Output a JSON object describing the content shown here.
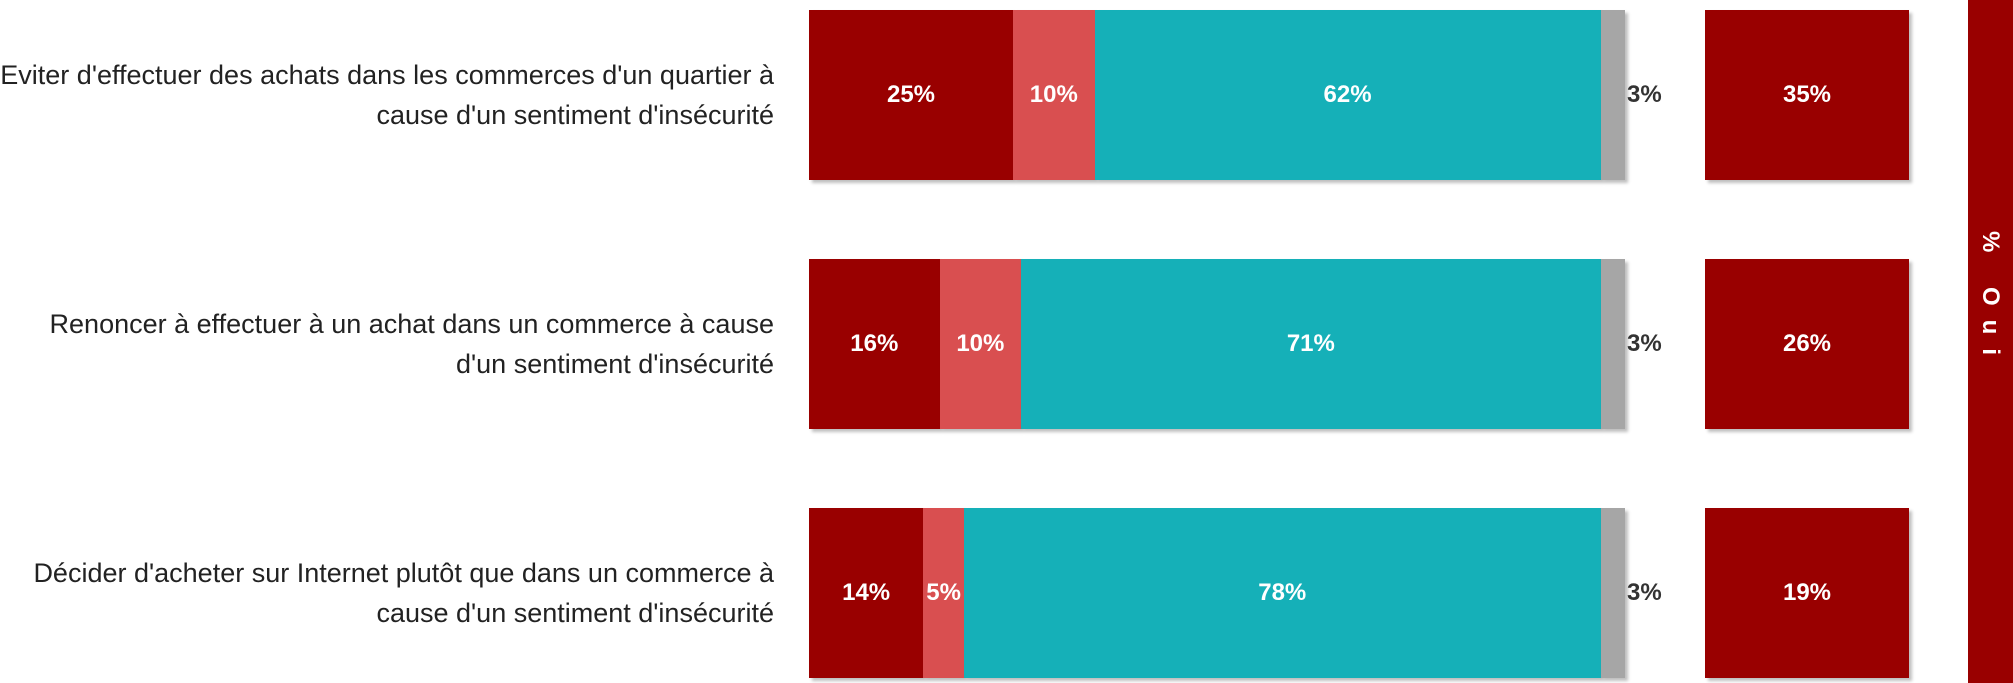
{
  "chart_data": {
    "type": "bar",
    "orientation": "horizontal",
    "stacked": true,
    "categories": [
      "Eviter d'effectuer des achats dans les commerces d'un quartier à cause d'un sentiment d'insécurité",
      "Renoncer à effectuer à un achat dans un commerce à cause d'un sentiment d'insécurité",
      "Décider d'acheter sur Internet plutôt que dans un commerce à cause d'un sentiment d'insécurité"
    ],
    "series": [
      {
        "color": "#990000",
        "values": [
          25,
          16,
          14
        ],
        "value_labels": [
          "25%",
          "16%",
          "14%"
        ]
      },
      {
        "color": "#d94f50",
        "values": [
          10,
          10,
          5
        ],
        "value_labels": [
          "10%",
          "10%",
          "5%"
        ]
      },
      {
        "color": "#15b0b8",
        "values": [
          62,
          71,
          78
        ],
        "value_labels": [
          "62%",
          "71%",
          "78%"
        ]
      },
      {
        "color": "#a6a6a6",
        "values": [
          3,
          3,
          3
        ],
        "value_labels": [
          "3%",
          "3%",
          "3%"
        ]
      }
    ],
    "totals": {
      "label": "% Oui",
      "color": "#990000",
      "values": [
        35,
        26,
        19
      ],
      "value_labels": [
        "35%",
        "26%",
        "19%"
      ]
    }
  }
}
